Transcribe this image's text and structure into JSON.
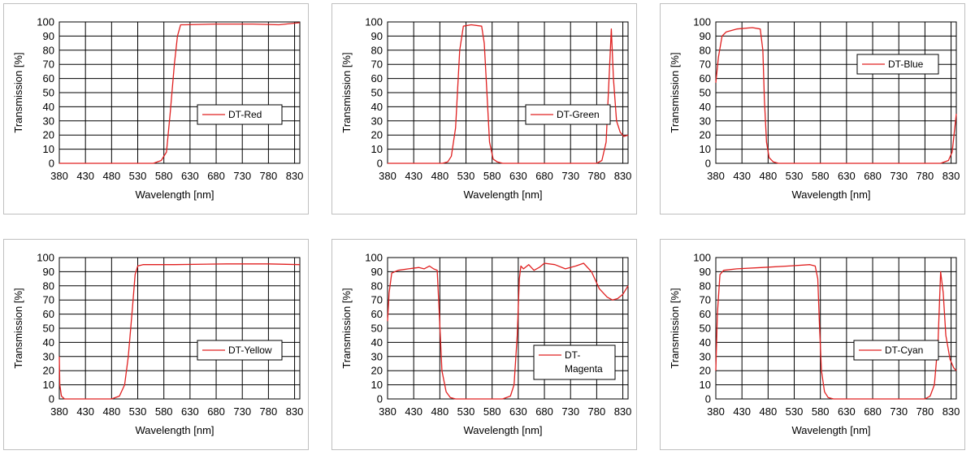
{
  "chart_data": [
    {
      "type": "line",
      "xlabel": "Wavelength [nm]",
      "ylabel": "Transmission [%]",
      "xlim": [
        380,
        840
      ],
      "ylim": [
        0,
        100
      ],
      "xticks": [
        380,
        430,
        480,
        530,
        580,
        630,
        680,
        730,
        780,
        830
      ],
      "yticks": [
        0,
        10,
        20,
        30,
        40,
        50,
        60,
        70,
        80,
        90,
        100
      ],
      "grid": true,
      "legend_position": "center-right",
      "line_color": "#e02020",
      "series": [
        {
          "name": "DT-Red",
          "x": [
            380,
            560,
            575,
            585,
            592,
            600,
            606,
            612,
            620,
            680,
            750,
            800,
            840
          ],
          "y": [
            0,
            0,
            2,
            8,
            35,
            70,
            90,
            98,
            98,
            98.5,
            98.5,
            98,
            99.5
          ]
        }
      ]
    },
    {
      "type": "line",
      "xlabel": "Wavelength [nm]",
      "ylabel": "Transmission [%]",
      "xlim": [
        380,
        840
      ],
      "ylim": [
        0,
        100
      ],
      "xticks": [
        380,
        430,
        480,
        530,
        580,
        630,
        680,
        730,
        780,
        830
      ],
      "yticks": [
        0,
        10,
        20,
        30,
        40,
        50,
        60,
        70,
        80,
        90,
        100
      ],
      "grid": true,
      "legend_position": "center-right",
      "line_color": "#e02020",
      "series": [
        {
          "name": "DT-Green",
          "x": [
            380,
            485,
            495,
            502,
            510,
            518,
            525,
            540,
            560,
            565,
            570,
            575,
            582,
            590,
            600,
            700,
            780,
            790,
            798,
            803,
            808,
            812,
            818,
            825,
            832,
            840
          ],
          "y": [
            0,
            0,
            1,
            5,
            25,
            80,
            97,
            98,
            97,
            85,
            50,
            15,
            3,
            1,
            0,
            0,
            0,
            2,
            15,
            55,
            95,
            60,
            30,
            22,
            19,
            20
          ]
        }
      ]
    },
    {
      "type": "line",
      "xlabel": "Wavelength [nm]",
      "ylabel": "Transmission [%]",
      "xlim": [
        380,
        840
      ],
      "ylim": [
        0,
        100
      ],
      "xticks": [
        380,
        430,
        480,
        530,
        580,
        630,
        680,
        730,
        780,
        830
      ],
      "yticks": [
        0,
        10,
        20,
        30,
        40,
        50,
        60,
        70,
        80,
        90,
        100
      ],
      "grid": true,
      "legend_position": "top-right",
      "line_color": "#e02020",
      "series": [
        {
          "name": "DT-Blue",
          "x": [
            380,
            385,
            392,
            400,
            420,
            450,
            465,
            470,
            473,
            477,
            482,
            490,
            500,
            780,
            810,
            825,
            832,
            840
          ],
          "y": [
            57,
            75,
            90,
            93,
            95,
            96,
            95,
            80,
            45,
            15,
            4,
            1,
            0,
            0,
            0,
            2,
            8,
            35
          ]
        }
      ]
    },
    {
      "type": "line",
      "xlabel": "Wavelength [nm]",
      "ylabel": "Transmission [%]",
      "xlim": [
        380,
        840
      ],
      "ylim": [
        0,
        100
      ],
      "xticks": [
        380,
        430,
        480,
        530,
        580,
        630,
        680,
        730,
        780,
        830
      ],
      "yticks": [
        0,
        10,
        20,
        30,
        40,
        50,
        60,
        70,
        80,
        90,
        100
      ],
      "grid": true,
      "legend_position": "center-right",
      "line_color": "#e02020",
      "series": [
        {
          "name": "DT-Yellow",
          "x": [
            380,
            381,
            384,
            390,
            480,
            495,
            505,
            512,
            520,
            525,
            530,
            540,
            600,
            700,
            780,
            840
          ],
          "y": [
            30,
            10,
            2,
            0,
            0,
            2,
            10,
            30,
            65,
            88,
            94,
            95,
            95,
            95.5,
            95.5,
            95
          ]
        }
      ]
    },
    {
      "type": "line",
      "xlabel": "Wavelength [nm]",
      "ylabel": "Transmission [%]",
      "xlim": [
        380,
        840
      ],
      "ylim": [
        0,
        100
      ],
      "xticks": [
        380,
        430,
        480,
        530,
        580,
        630,
        680,
        730,
        780,
        830
      ],
      "yticks": [
        0,
        10,
        20,
        30,
        40,
        50,
        60,
        70,
        80,
        90,
        100
      ],
      "grid": true,
      "legend_position": "bottom-right",
      "line_color": "#e02020",
      "series": [
        {
          "name": "DT-Magenta",
          "x": [
            380,
            383,
            388,
            400,
            420,
            440,
            450,
            460,
            468,
            475,
            479,
            484,
            492,
            500,
            510,
            600,
            615,
            622,
            628,
            632,
            635,
            640,
            650,
            660,
            670,
            680,
            700,
            720,
            740,
            755,
            770,
            785,
            800,
            810,
            820,
            830,
            840
          ],
          "y": [
            55,
            75,
            89,
            91,
            92,
            93,
            92,
            94,
            92,
            91,
            60,
            20,
            5,
            1,
            0,
            0,
            2,
            10,
            45,
            85,
            94,
            92,
            95,
            91,
            93,
            96,
            95,
            92,
            94,
            96,
            90,
            78,
            72,
            70,
            71,
            74,
            80
          ]
        }
      ]
    },
    {
      "type": "line",
      "xlabel": "Wavelength [nm]",
      "ylabel": "Transmission [%]",
      "xlim": [
        380,
        840
      ],
      "ylim": [
        0,
        100
      ],
      "xticks": [
        380,
        430,
        480,
        530,
        580,
        630,
        680,
        730,
        780,
        830
      ],
      "yticks": [
        0,
        10,
        20,
        30,
        40,
        50,
        60,
        70,
        80,
        90,
        100
      ],
      "grid": true,
      "legend_position": "center-right",
      "line_color": "#e02020",
      "series": [
        {
          "name": "DT-Cyan",
          "x": [
            380,
            383,
            388,
            395,
            420,
            470,
            520,
            560,
            570,
            575,
            578,
            582,
            588,
            595,
            605,
            780,
            790,
            798,
            805,
            810,
            815,
            820,
            828,
            835,
            840
          ],
          "y": [
            20,
            60,
            88,
            91,
            92,
            93,
            94,
            95,
            94,
            85,
            55,
            20,
            5,
            1,
            0,
            0,
            2,
            10,
            40,
            90,
            75,
            45,
            28,
            22,
            20
          ]
        }
      ]
    }
  ]
}
